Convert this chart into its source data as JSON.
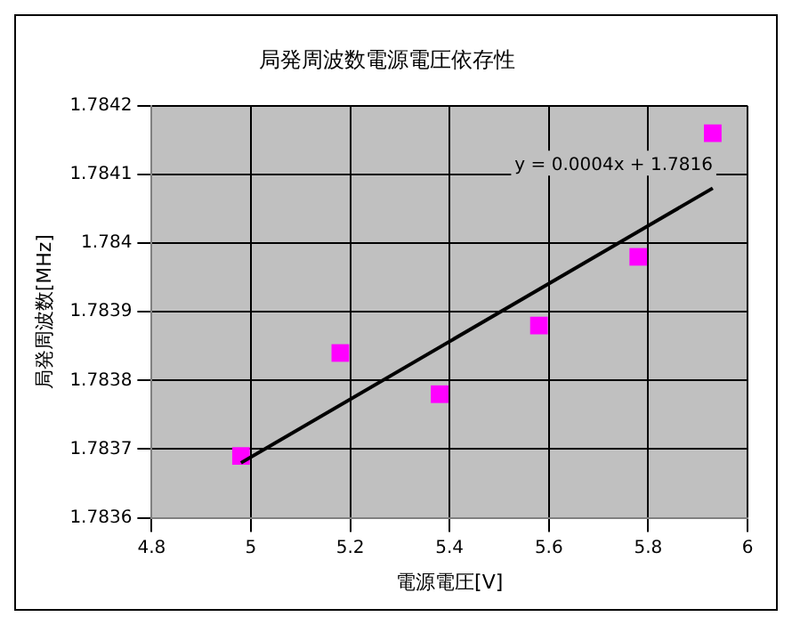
{
  "chart_data": {
    "type": "scatter",
    "title": "局発周波数電源電圧依存性",
    "xlabel": "電源電圧[V]",
    "ylabel": "局発周波数[MHz]",
    "annotations": [
      "y = 0.0004x + 1.7816"
    ],
    "x": [
      4.98,
      5.18,
      5.38,
      5.58,
      5.78,
      5.93
    ],
    "series": [
      {
        "color": "#ff00ff",
        "marker": "square",
        "values": [
          1.78369,
          1.78384,
          1.78378,
          1.78388,
          1.78398,
          1.78416
        ]
      },
      {
        "type": "line",
        "color": "#000000",
        "marker": "none",
        "x": [
          4.98,
          5.93
        ],
        "values": [
          1.78368,
          1.78408
        ]
      }
    ],
    "xlim": [
      4.8,
      6
    ],
    "xticks": [
      4.8,
      5,
      5.2,
      5.4,
      5.6,
      5.8,
      6
    ],
    "ylim": [
      1.7836,
      1.7842
    ],
    "yticks": [
      1.7836,
      1.7837,
      1.7838,
      1.7839,
      1.784,
      1.7841,
      1.7842
    ],
    "grid": true,
    "legend": false
  }
}
